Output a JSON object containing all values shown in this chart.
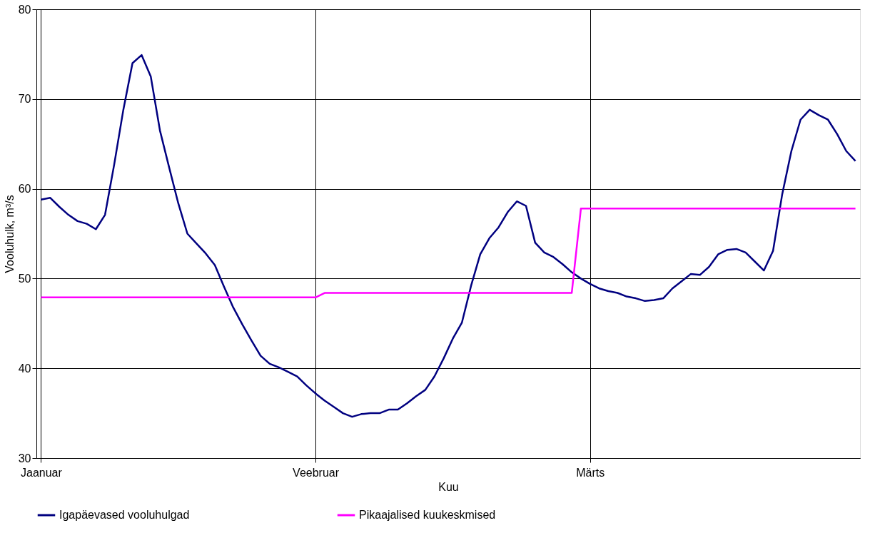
{
  "chart_data": {
    "type": "line",
    "xlabel": "Kuu",
    "ylabel": "Vooluhulk, m³/s",
    "categories": [
      "Jaanuar",
      null,
      null,
      null,
      null,
      null,
      null,
      null,
      null,
      null,
      null,
      null,
      null,
      null,
      null,
      null,
      null,
      null,
      null,
      null,
      null,
      null,
      null,
      null,
      null,
      null,
      null,
      null,
      null,
      null,
      "Veebruar",
      null,
      null,
      null,
      null,
      null,
      null,
      null,
      null,
      null,
      null,
      null,
      null,
      null,
      null,
      null,
      null,
      null,
      null,
      null,
      null,
      null,
      null,
      null,
      null,
      null,
      null,
      null,
      null,
      null,
      "Märts",
      null,
      null,
      null,
      null,
      null,
      null,
      null,
      null,
      null,
      null,
      null,
      null,
      null,
      null,
      null,
      null,
      null,
      null,
      null,
      null,
      null,
      null,
      null,
      null,
      null,
      null,
      null,
      null,
      null
    ],
    "ylim": [
      30,
      80
    ],
    "yticks": [
      30,
      40,
      50,
      60,
      70,
      80
    ],
    "grid": true,
    "legend": "bottom",
    "marker": "none",
    "line_style": "solid",
    "series": [
      {
        "name": "Igapäevased vooluhulgad",
        "color": "#000080",
        "values": [
          58.8,
          59.0,
          58.0,
          57.1,
          56.4,
          56.1,
          55.5,
          57.1,
          62.7,
          68.8,
          74.0,
          74.9,
          72.5,
          66.5,
          62.4,
          58.4,
          55.0,
          53.9,
          52.8,
          51.5,
          49.1,
          46.8,
          44.9,
          43.1,
          41.4,
          40.5,
          40.1,
          39.6,
          39.1,
          38.1,
          37.2,
          36.4,
          35.7,
          35.0,
          34.6,
          34.9,
          35.0,
          35.0,
          35.4,
          35.4,
          36.1,
          36.9,
          37.6,
          39.1,
          41.1,
          43.3,
          45.1,
          49.2,
          52.7,
          54.5,
          55.7,
          57.4,
          58.6,
          58.1,
          54.0,
          52.9,
          52.4,
          51.6,
          50.7,
          50.0,
          49.4,
          48.9,
          48.6,
          48.4,
          48.0,
          47.8,
          47.5,
          47.6,
          47.8,
          48.9,
          49.7,
          50.5,
          50.4,
          51.3,
          52.7,
          53.2,
          53.3,
          52.9,
          51.9,
          50.9,
          53.1,
          59.4,
          64.2,
          67.7,
          68.8,
          68.2,
          67.7,
          66.1,
          64.2,
          63.1
        ]
      },
      {
        "name": "Pikaajalised kuukeskmised",
        "color": "#ff00ff",
        "values": [
          47.9,
          47.9,
          47.9,
          47.9,
          47.9,
          47.9,
          47.9,
          47.9,
          47.9,
          47.9,
          47.9,
          47.9,
          47.9,
          47.9,
          47.9,
          47.9,
          47.9,
          47.9,
          47.9,
          47.9,
          47.9,
          47.9,
          47.9,
          47.9,
          47.9,
          47.9,
          47.9,
          47.9,
          47.9,
          47.9,
          47.9,
          48.4,
          48.4,
          48.4,
          48.4,
          48.4,
          48.4,
          48.4,
          48.4,
          48.4,
          48.4,
          48.4,
          48.4,
          48.4,
          48.4,
          48.4,
          48.4,
          48.4,
          48.4,
          48.4,
          48.4,
          48.4,
          48.4,
          48.4,
          48.4,
          48.4,
          48.4,
          48.4,
          48.4,
          57.8,
          57.8,
          57.8,
          57.8,
          57.8,
          57.8,
          57.8,
          57.8,
          57.8,
          57.8,
          57.8,
          57.8,
          57.8,
          57.8,
          57.8,
          57.8,
          57.8,
          57.8,
          57.8,
          57.8,
          57.8,
          57.8,
          57.8,
          57.8,
          57.8,
          57.8,
          57.8,
          57.8,
          57.8,
          57.8,
          57.8
        ]
      }
    ]
  }
}
